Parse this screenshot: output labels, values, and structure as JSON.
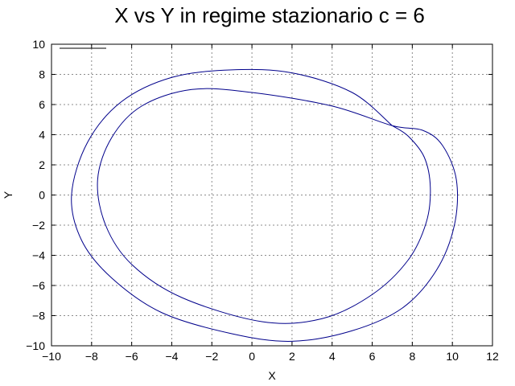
{
  "chart_data": {
    "type": "line",
    "title": "X vs Y in regime stazionario c = 6",
    "xlabel": "X",
    "ylabel": "Y",
    "xlim": [
      -10,
      12
    ],
    "ylim": [
      -10,
      10
    ],
    "xticks": [
      -10,
      -8,
      -6,
      -4,
      -2,
      0,
      2,
      4,
      6,
      8,
      10,
      12
    ],
    "yticks": [
      -10,
      -8,
      -6,
      -4,
      -2,
      0,
      2,
      4,
      6,
      8,
      10
    ],
    "grid": true,
    "legend": {
      "position": "top-left",
      "entries": [
        ""
      ]
    },
    "series": [
      {
        "color": "#00008b",
        "x": [
          7.0,
          5.0,
          2.0,
          -1.0,
          -4.0,
          -6.5,
          -8.2,
          -9.0,
          -8.5,
          -7.0,
          -4.5,
          -1.0,
          2.0,
          5.0,
          7.5,
          9.2,
          10.1,
          10.2,
          9.5,
          8.5,
          7.0,
          4.0,
          0.0,
          -3.0,
          -5.5,
          -7.0,
          -7.7,
          -7.3,
          -6.0,
          -3.5,
          0.5,
          3.5,
          6.0,
          7.8,
          8.7,
          8.9,
          8.6,
          7.8,
          7.0
        ],
        "y": [
          4.6,
          6.8,
          8.1,
          8.3,
          7.8,
          6.2,
          3.5,
          0.0,
          -3.0,
          -5.5,
          -7.8,
          -9.2,
          -9.7,
          -9.0,
          -7.5,
          -5.0,
          -2.0,
          1.0,
          3.3,
          4.3,
          4.6,
          5.9,
          6.8,
          7.0,
          5.9,
          3.8,
          1.0,
          -2.0,
          -4.6,
          -6.8,
          -8.4,
          -8.2,
          -6.6,
          -4.3,
          -1.8,
          0.5,
          2.5,
          3.9,
          4.6
        ]
      }
    ]
  }
}
